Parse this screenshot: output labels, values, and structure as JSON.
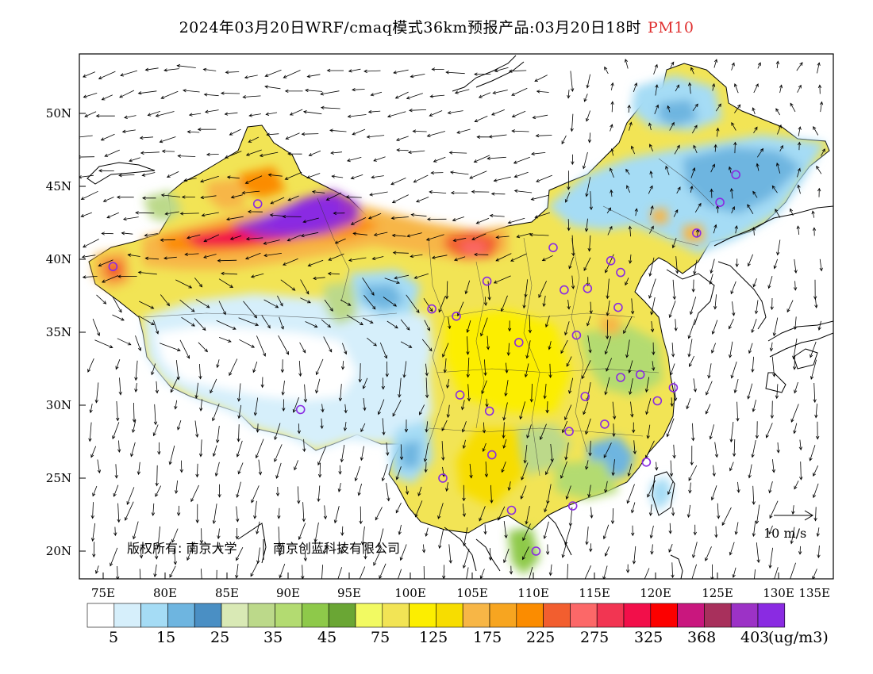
{
  "title": {
    "main": "2024年03月20日WRF/cmaq模式36km预报产品:03月20日18时",
    "pollutant": "PM10"
  },
  "map": {
    "lat_labels": [
      "50N",
      "45N",
      "40N",
      "35N",
      "30N",
      "25N",
      "20N"
    ],
    "lon_labels": [
      "75E",
      "80E",
      "85E",
      "90E",
      "95E",
      "100E",
      "105E",
      "110E",
      "115E",
      "120E",
      "125E",
      "130E",
      "135E"
    ],
    "copyright": "版权所有: 南京大学",
    "company": "南京创蓝科技有限公司",
    "wind_scale_label": "10 m/s"
  },
  "legend": {
    "colors": [
      "#ffffff",
      "#d6effb",
      "#a5dcf5",
      "#6eb5e0",
      "#4a8fc4",
      "#d9e9b5",
      "#bcd98a",
      "#b3db71",
      "#8ec94a",
      "#6aa634",
      "#f2fa62",
      "#f2e455",
      "#fcee00",
      "#f7dd00",
      "#f7b646",
      "#f7a520",
      "#fb8c00",
      "#f25e2f",
      "#fc6868",
      "#f23552",
      "#f20f4a",
      "#fc0000",
      "#c9177e",
      "#a8305c",
      "#9c32c6",
      "#8a2be2"
    ],
    "labels": [
      "5",
      "15",
      "25",
      "35",
      "45",
      "75",
      "125",
      "175",
      "225",
      "275",
      "325",
      "368",
      "403"
    ],
    "units": "(ug/m3)"
  },
  "stations": [
    {
      "lon": 75.8,
      "lat": 39.5
    },
    {
      "lon": 87.6,
      "lat": 43.8
    },
    {
      "lon": 91.1,
      "lat": 29.7
    },
    {
      "lon": 101.8,
      "lat": 36.6
    },
    {
      "lon": 103.8,
      "lat": 36.1
    },
    {
      "lon": 106.3,
      "lat": 38.5
    },
    {
      "lon": 111.7,
      "lat": 40.8
    },
    {
      "lon": 112.6,
      "lat": 37.9
    },
    {
      "lon": 114.5,
      "lat": 38.0
    },
    {
      "lon": 116.4,
      "lat": 39.9
    },
    {
      "lon": 117.2,
      "lat": 39.1
    },
    {
      "lon": 117.0,
      "lat": 36.7
    },
    {
      "lon": 113.6,
      "lat": 34.8
    },
    {
      "lon": 108.9,
      "lat": 34.3
    },
    {
      "lon": 104.1,
      "lat": 30.7
    },
    {
      "lon": 106.5,
      "lat": 29.6
    },
    {
      "lon": 114.3,
      "lat": 30.6
    },
    {
      "lon": 117.2,
      "lat": 31.9
    },
    {
      "lon": 118.8,
      "lat": 32.1
    },
    {
      "lon": 121.5,
      "lat": 31.2
    },
    {
      "lon": 120.2,
      "lat": 30.3
    },
    {
      "lon": 115.9,
      "lat": 28.7
    },
    {
      "lon": 113.0,
      "lat": 28.2
    },
    {
      "lon": 106.7,
      "lat": 26.6
    },
    {
      "lon": 102.7,
      "lat": 25.0
    },
    {
      "lon": 108.3,
      "lat": 22.8
    },
    {
      "lon": 113.3,
      "lat": 23.1
    },
    {
      "lon": 119.3,
      "lat": 26.1
    },
    {
      "lon": 110.3,
      "lat": 20.0
    },
    {
      "lon": 123.4,
      "lat": 41.8
    },
    {
      "lon": 125.3,
      "lat": 43.9
    },
    {
      "lon": 126.6,
      "lat": 45.8
    }
  ]
}
